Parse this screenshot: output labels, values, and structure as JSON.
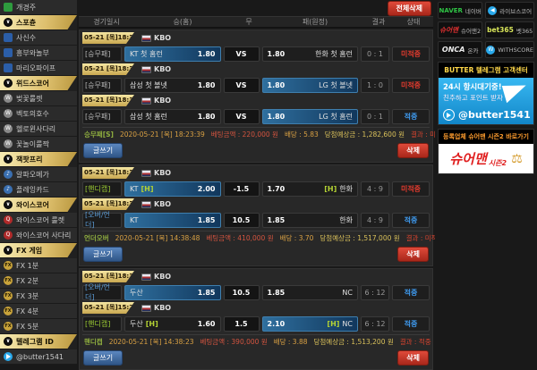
{
  "colors": {
    "accent_gold": "#d4b254",
    "highlight_blue": "#1d5f93",
    "miss_red": "#e23b2e",
    "hit_blue": "#3f9bf0",
    "telegram_blue": "#29a9eb",
    "naver_green": "#2fc345"
  },
  "icons": {
    "chevron": "∨",
    "w": "W",
    "q": "Q",
    "fx": "FX",
    "note": "♪",
    "scales": "⚖"
  },
  "sidebar": {
    "items": [
      {
        "label": "개경주"
      },
      {
        "label": "스포츈"
      },
      {
        "label": "사신수"
      },
      {
        "label": "흥부와놀부"
      },
      {
        "label": "마리오파이프"
      },
      {
        "label": "위드스코어"
      },
      {
        "label": "벚꽃룰렛"
      },
      {
        "label": "벡토의호수"
      },
      {
        "label": "헬로윈사다리"
      },
      {
        "label": "꽃놀이룰짝"
      },
      {
        "label": "잭팟프리"
      },
      {
        "label": "알파오메가"
      },
      {
        "label": "플레잉카드"
      },
      {
        "label": "와이스코어"
      },
      {
        "label": "와이스코어 룰렛"
      },
      {
        "label": "와이스코어 사다리"
      },
      {
        "label": "FX 게임"
      },
      {
        "label": "FX 1분"
      },
      {
        "label": "FX 2분"
      },
      {
        "label": "FX 3분"
      },
      {
        "label": "FX 4분"
      },
      {
        "label": "FX 5분"
      },
      {
        "label": "텔레그램 ID"
      },
      {
        "label": "@butter1541"
      }
    ]
  },
  "main": {
    "delete_all_label": "전체삭제",
    "write_label": "글쓰기",
    "delete_label": "삭제",
    "headers": {
      "time": "경기일시",
      "home": "승(홈)",
      "draw": "무",
      "away": "패(원정)",
      "result": "결과",
      "state": "상태"
    },
    "groups": [
      {
        "matches": [
          {
            "date": "05-21 [목]18:30",
            "league": "KBO",
            "type": "[승무패]",
            "home_name": "KT 첫 홈런",
            "home_tag": "",
            "home_odds": "1.80",
            "mid": "VS",
            "away_odds": "1.80",
            "away_tag": "",
            "away_name": "한화 첫 홈런",
            "score": "0 : 1",
            "status": "미적중"
          },
          {
            "date": "05-21 [목]18:30",
            "league": "KBO",
            "type": "[승무패]",
            "home_name": "삼성 첫 볼넷",
            "home_tag": "",
            "home_odds": "1.80",
            "mid": "VS",
            "away_odds": "1.80",
            "away_tag": "",
            "away_name": "LG 첫 볼넷",
            "score": "1 : 0",
            "status": "미적중"
          },
          {
            "date": "05-21 [목]18:30",
            "league": "KBO",
            "type": "[승무패]",
            "home_name": "삼성 첫 홈런",
            "home_tag": "",
            "home_odds": "1.80",
            "mid": "VS",
            "away_odds": "1.80",
            "away_tag": "",
            "away_name": "LG 첫 홈런",
            "score": "0 : 1",
            "status": "적중"
          }
        ],
        "summary": {
          "label": "승무패[S]",
          "datetime": "2020-05-21 [목] 18:23:39",
          "amount": "베팅금액 : 220,000 원",
          "odds": "배당 : 5.83",
          "expected": "당첨예상금 : 1,282,600 원",
          "result": "결과 : 미적중"
        }
      },
      {
        "matches": [
          {
            "date": "05-21 [목]18:30",
            "league": "KBO",
            "type": "[핸디캡]",
            "home_name": "KT",
            "home_tag": "[H]",
            "home_odds": "2.00",
            "mid": "-1.5",
            "away_odds": "1.70",
            "away_tag": "[H]",
            "away_name": "한화",
            "score": "4 : 9",
            "status": "미적중"
          },
          {
            "date": "05-21 [목]18:30",
            "league": "KBO",
            "type": "[오버/언더]",
            "home_name": "KT",
            "home_tag": "",
            "home_odds": "1.85",
            "mid": "10.5",
            "away_odds": "1.85",
            "away_tag": "",
            "away_name": "한화",
            "score": "4 : 9",
            "status": "적중"
          }
        ],
        "summary": {
          "label": "언더오버",
          "datetime": "2020-05-21 [목] 14:38:48",
          "amount": "베팅금액 : 410,000 원",
          "odds": "배당 : 3.70",
          "expected": "당첨예상금 : 1,517,000 원",
          "result": "결과 : 미적중"
        }
      },
      {
        "matches": [
          {
            "date": "05-21 [목]18:30",
            "league": "KBO",
            "type": "[오버/언더]",
            "home_name": "두산",
            "home_tag": "",
            "home_odds": "1.85",
            "mid": "10.5",
            "away_odds": "1.85",
            "away_tag": "",
            "away_name": "NC",
            "score": "6 : 12",
            "status": "적중"
          },
          {
            "date": "05-21 [목]15:27",
            "league": "KBO",
            "type": "[핸디캡]",
            "home_name": "두산",
            "home_tag": "[H]",
            "home_odds": "1.60",
            "mid": "1.5",
            "away_odds": "2.10",
            "away_tag": "[H]",
            "away_name": "NC",
            "score": "6 : 12",
            "status": "적중"
          }
        ],
        "summary": {
          "label": "핸디캡",
          "datetime": "2020-05-21 [목] 14:38:23",
          "amount": "베팅금액 : 390,000 원",
          "odds": "배당 : 3.88",
          "expected": "당첨예상금 : 1,513,200 원",
          "result": "결과 : 적중"
        }
      }
    ]
  },
  "rightbar": {
    "links": [
      {
        "logo": "NAVER",
        "label": "네이버"
      },
      {
        "label": "라이브스코어"
      },
      {
        "logo": "슈어맨",
        "label": "슈어맨2"
      },
      {
        "logo": "bet365",
        "label": "벳365"
      },
      {
        "logo": "ONCA",
        "label": "온카"
      },
      {
        "label": "WITHSCORE"
      }
    ],
    "telegram": {
      "header": "BUTTER 텔레그램 고객센터",
      "line1": "24시 항시대기중!",
      "line2": "친추하고 포인트 받자",
      "id": "@butter1541"
    },
    "sureman": {
      "header": "등록업체 슈어맨 시즌2 바로가기",
      "logo_main": "슈어맨",
      "logo_sub": "시즌2"
    }
  }
}
